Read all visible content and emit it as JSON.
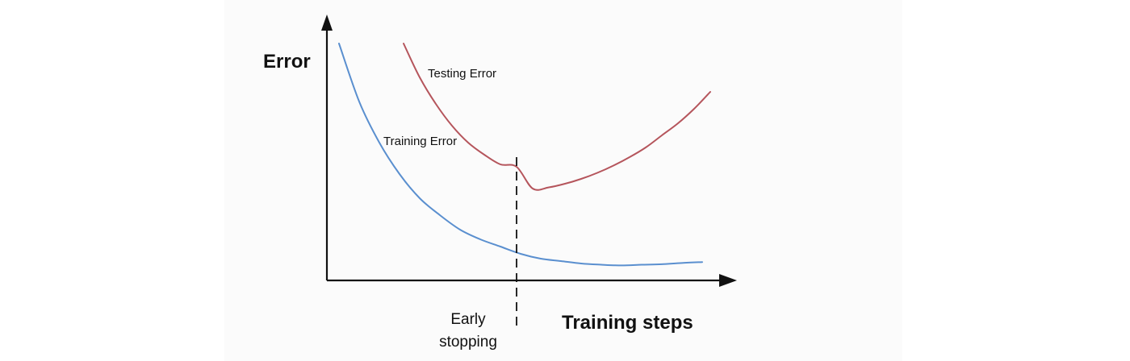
{
  "chart_data": {
    "type": "line",
    "ylabel": "Error",
    "xlabel": "Training steps",
    "xlim": [
      0,
      100
    ],
    "ylim": [
      0,
      100
    ],
    "grid": false,
    "axis_ticks": false,
    "series": [
      {
        "name": "Training Error",
        "color": "#5a8fcf",
        "x": [
          3,
          8,
          13,
          18,
          23,
          28,
          33,
          38,
          43,
          48,
          53,
          58,
          63,
          68,
          73,
          78,
          83,
          88,
          93
        ],
        "y": [
          98,
          74,
          57,
          44,
          34,
          27,
          21,
          17,
          14,
          11,
          9,
          8,
          7,
          6.5,
          6.2,
          6.5,
          6.7,
          7.2,
          7.6
        ]
      },
      {
        "name": "Testing Error",
        "color": "#b5555c",
        "x": [
          19,
          23,
          27,
          31,
          35,
          39,
          43,
          47,
          51,
          55,
          59,
          63,
          67,
          71,
          75,
          79,
          83,
          87,
          91,
          95
        ],
        "y": [
          98,
          84,
          73,
          64,
          57,
          52,
          48,
          47,
          38,
          38.5,
          40,
          42,
          44.5,
          47.5,
          51,
          55,
          60,
          65,
          71,
          78
        ]
      }
    ],
    "annotations": [
      {
        "text": "Testing Error",
        "x": 25,
        "y": 84
      },
      {
        "text": "Training Error",
        "x": 14,
        "y": 56
      }
    ],
    "marker": {
      "type": "vertical-dashed-line",
      "x": 47,
      "label_lines": [
        "Early",
        "stopping"
      ]
    }
  }
}
